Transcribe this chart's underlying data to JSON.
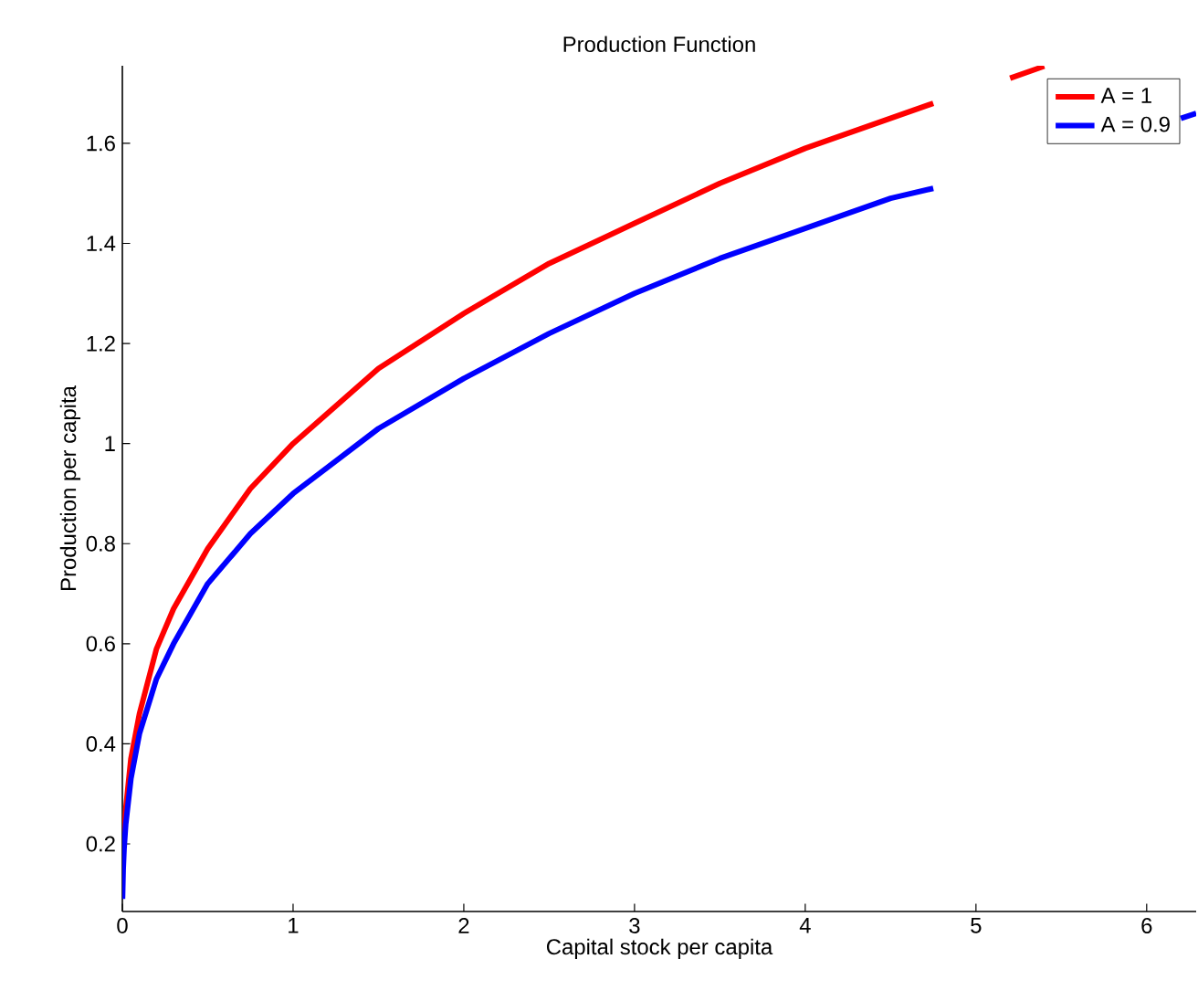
{
  "chart_data": {
    "type": "line",
    "title": "Production Function",
    "xlabel": "Capital stock per capita",
    "ylabel": "Production per capita",
    "xlim": [
      0,
      6.29
    ],
    "ylim": [
      0.065,
      1.755
    ],
    "xticks": [
      0,
      1,
      2,
      3,
      4,
      5,
      6
    ],
    "yticks": [
      0.2,
      0.4,
      0.6,
      0.8,
      1,
      1.2,
      1.4,
      1.6
    ],
    "legend": "top right",
    "marker": "none",
    "line_style": "solid",
    "grid": false,
    "series": [
      {
        "name": "A = 1",
        "color": "#ff0000",
        "x": [
          0.01,
          0.02,
          0.05,
          0.1,
          0.2,
          0.3,
          0.5,
          0.75,
          1,
          1.5,
          2,
          2.5,
          3,
          3.5,
          4,
          4.5,
          4.75,
          5.0,
          5.2,
          5.4
        ],
        "values": [
          0.22,
          0.27,
          0.37,
          0.46,
          0.59,
          0.67,
          0.79,
          0.91,
          1.0,
          1.15,
          1.26,
          1.36,
          1.44,
          1.52,
          1.59,
          1.65,
          1.68,
          null,
          1.73,
          1.754
        ]
      },
      {
        "name": "A = 0.9",
        "color": "#0000ff",
        "x": [
          0.001,
          0.005,
          0.01,
          0.02,
          0.05,
          0.1,
          0.2,
          0.3,
          0.5,
          0.75,
          1,
          1.5,
          2,
          2.5,
          3,
          3.5,
          4,
          4.5,
          4.75,
          5.5,
          6.2,
          6.29
        ],
        "values": [
          0.09,
          0.15,
          0.19,
          0.24,
          0.33,
          0.42,
          0.53,
          0.6,
          0.72,
          0.82,
          0.9,
          1.03,
          1.13,
          1.22,
          1.3,
          1.37,
          1.43,
          1.49,
          1.51,
          null,
          1.65,
          1.66
        ]
      }
    ]
  }
}
